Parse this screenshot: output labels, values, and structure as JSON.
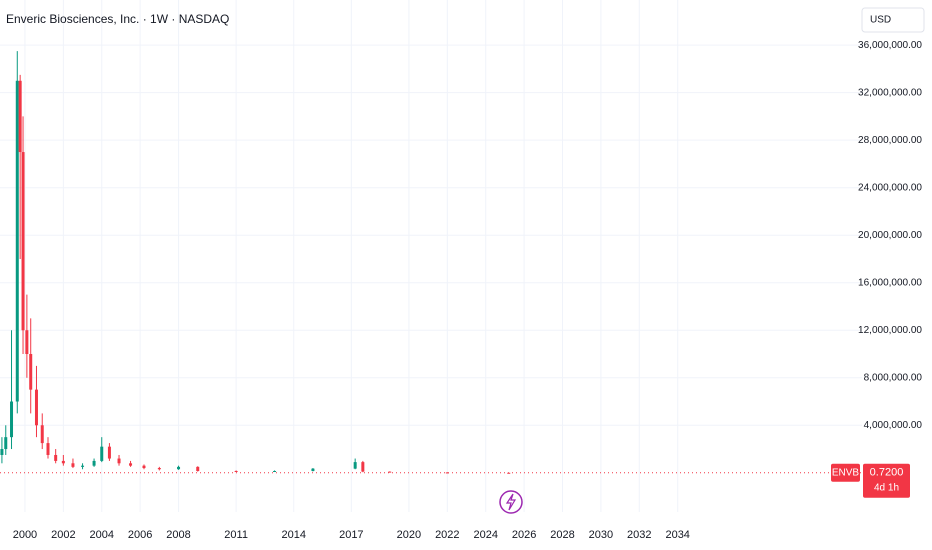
{
  "chart_data": {
    "type": "candlestick",
    "title": "Enveric Biosciences, Inc. · 1W · NASDAQ",
    "currency": "USD",
    "symbol": "ENVB",
    "last_price": {
      "value": 0.72,
      "label": "0.7200"
    },
    "countdown": "4d 1h",
    "up_color": "#089981",
    "down_color": "#f23645",
    "grid": true,
    "xlim": [
      1998.7,
      2043.6
    ],
    "ylim": [
      -3300000,
      39800000
    ],
    "xticks": [
      2000,
      2002,
      2004,
      2006,
      2008,
      2011,
      2014,
      2017,
      2020,
      2022,
      2024,
      2026,
      2028,
      2030,
      2032,
      2034
    ],
    "yticks": [
      {
        "value": 4000000,
        "label": "4,000,000.00"
      },
      {
        "value": 8000000,
        "label": "8,000,000.00"
      },
      {
        "value": 12000000,
        "label": "12,000,000.00"
      },
      {
        "value": 16000000,
        "label": "16,000,000.00"
      },
      {
        "value": 20000000,
        "label": "20,000,000.00"
      },
      {
        "value": 24000000,
        "label": "24,000,000.00"
      },
      {
        "value": 28000000,
        "label": "28,000,000.00"
      },
      {
        "value": 32000000,
        "label": "32,000,000.00"
      },
      {
        "value": 36000000,
        "label": "36,000,000.00"
      }
    ],
    "x": [
      1998.8,
      1999.0,
      1999.3,
      1999.6,
      1999.75,
      1999.9,
      2000.1,
      2000.3,
      2000.6,
      2000.9,
      2001.2,
      2001.6,
      2002.0,
      2002.5,
      2003.0,
      2003.6,
      2004.0,
      2004.4,
      2004.9,
      2005.5,
      2006.2,
      2007.0,
      2008.0,
      2009.0,
      2011.0,
      2013.0,
      2015.0,
      2017.2,
      2017.6,
      2019.0,
      2022.0,
      2025.2
    ],
    "open": [
      1500000,
      2000000,
      3000000,
      6000000,
      33000000,
      27000000,
      12000000,
      10000000,
      7000000,
      4000000,
      2500000,
      1500000,
      1000000,
      800000,
      500000,
      600000,
      1000000,
      2200000,
      1200000,
      800000,
      600000,
      400000,
      300000,
      500000,
      150000,
      100000,
      150000,
      350000,
      900000,
      100000,
      30000,
      2000
    ],
    "high": [
      3000000,
      4000000,
      12000000,
      35500000,
      33500000,
      30000000,
      15000000,
      13000000,
      9000000,
      5000000,
      3000000,
      2000000,
      1500000,
      1200000,
      800000,
      1200000,
      3000000,
      2500000,
      1500000,
      1000000,
      700000,
      500000,
      600000,
      550000,
      200000,
      200000,
      400000,
      1200000,
      1000000,
      120000,
      50000,
      3000
    ],
    "low": [
      800000,
      1500000,
      2000000,
      5000000,
      18000000,
      10000000,
      8000000,
      5000000,
      3000000,
      2000000,
      1200000,
      800000,
      600000,
      400000,
      300000,
      500000,
      900000,
      1000000,
      600000,
      500000,
      300000,
      200000,
      250000,
      100000,
      80000,
      80000,
      120000,
      300000,
      50000,
      20000,
      1000,
      0.7
    ],
    "close": [
      2000000,
      3000000,
      6000000,
      33000000,
      27000000,
      12000000,
      10000000,
      7000000,
      4000000,
      2500000,
      1500000,
      1000000,
      800000,
      500000,
      600000,
      1000000,
      2200000,
      1200000,
      800000,
      600000,
      400000,
      300000,
      500000,
      150000,
      100000,
      150000,
      350000,
      900000,
      100000,
      30000,
      2000,
      0.72
    ]
  }
}
